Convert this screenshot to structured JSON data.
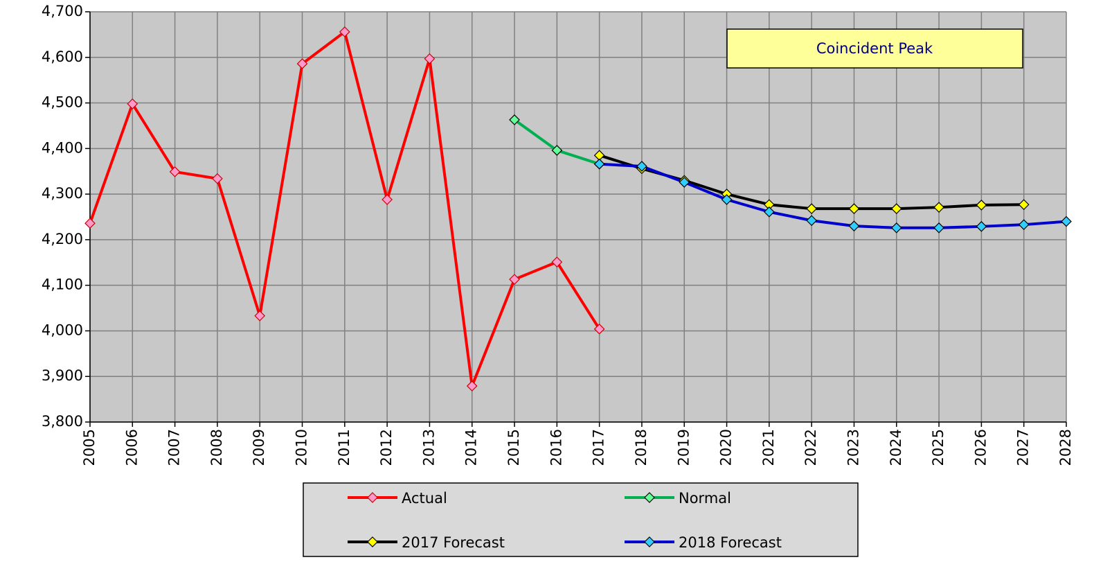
{
  "chart_data": {
    "type": "line",
    "annotation": "Coincident Peak",
    "categories": [
      "2005",
      "2006",
      "2007",
      "2008",
      "2009",
      "2010",
      "2011",
      "2012",
      "2013",
      "2014",
      "2015",
      "2016",
      "2017",
      "2018",
      "2019",
      "2020",
      "2021",
      "2022",
      "2023",
      "2024",
      "2025",
      "2026",
      "2027",
      "2028"
    ],
    "series": [
      {
        "name": "Actual",
        "color": "#ff0000",
        "marker_color": "#ff99cc",
        "values": [
          4236,
          4498,
          4349,
          4334,
          4033,
          4586,
          4656,
          4288,
          4597,
          3879,
          4113,
          4151,
          4004,
          null,
          null,
          null,
          null,
          null,
          null,
          null,
          null,
          null,
          null,
          null
        ]
      },
      {
        "name": "Normal",
        "color": "#00b050",
        "marker_color": "#66ff99",
        "values": [
          null,
          null,
          null,
          null,
          null,
          null,
          null,
          null,
          null,
          null,
          4463,
          4396,
          4366,
          null,
          null,
          null,
          null,
          null,
          null,
          null,
          null,
          null,
          null,
          null
        ]
      },
      {
        "name": "2017 Forecast",
        "color": "#000000",
        "marker_color": "#ffff00",
        "values": [
          null,
          null,
          null,
          null,
          null,
          null,
          null,
          null,
          null,
          null,
          null,
          null,
          4385,
          4356,
          4330,
          4300,
          4277,
          4268,
          4268,
          4268,
          4271,
          4276,
          4277,
          null
        ]
      },
      {
        "name": "2018 Forecast",
        "color": "#0000cc",
        "marker_color": "#33ccff",
        "values": [
          null,
          null,
          null,
          null,
          null,
          null,
          null,
          null,
          null,
          null,
          null,
          null,
          4366,
          4361,
          4326,
          4288,
          4261,
          4242,
          4230,
          4226,
          4226,
          4229,
          4233,
          4240
        ]
      }
    ],
    "ylim": [
      3800,
      4700
    ],
    "yticks": [
      {
        "value": 3800,
        "label": "3,800"
      },
      {
        "value": 3900,
        "label": "3,900"
      },
      {
        "value": 4000,
        "label": "4,000"
      },
      {
        "value": 4100,
        "label": "4,100"
      },
      {
        "value": 4200,
        "label": "4,200"
      },
      {
        "value": 4300,
        "label": "4,300"
      },
      {
        "value": 4400,
        "label": "4,400"
      },
      {
        "value": 4500,
        "label": "4,500"
      },
      {
        "value": 4600,
        "label": "4,600"
      },
      {
        "value": 4700,
        "label": "4,700"
      }
    ],
    "grid": true
  }
}
